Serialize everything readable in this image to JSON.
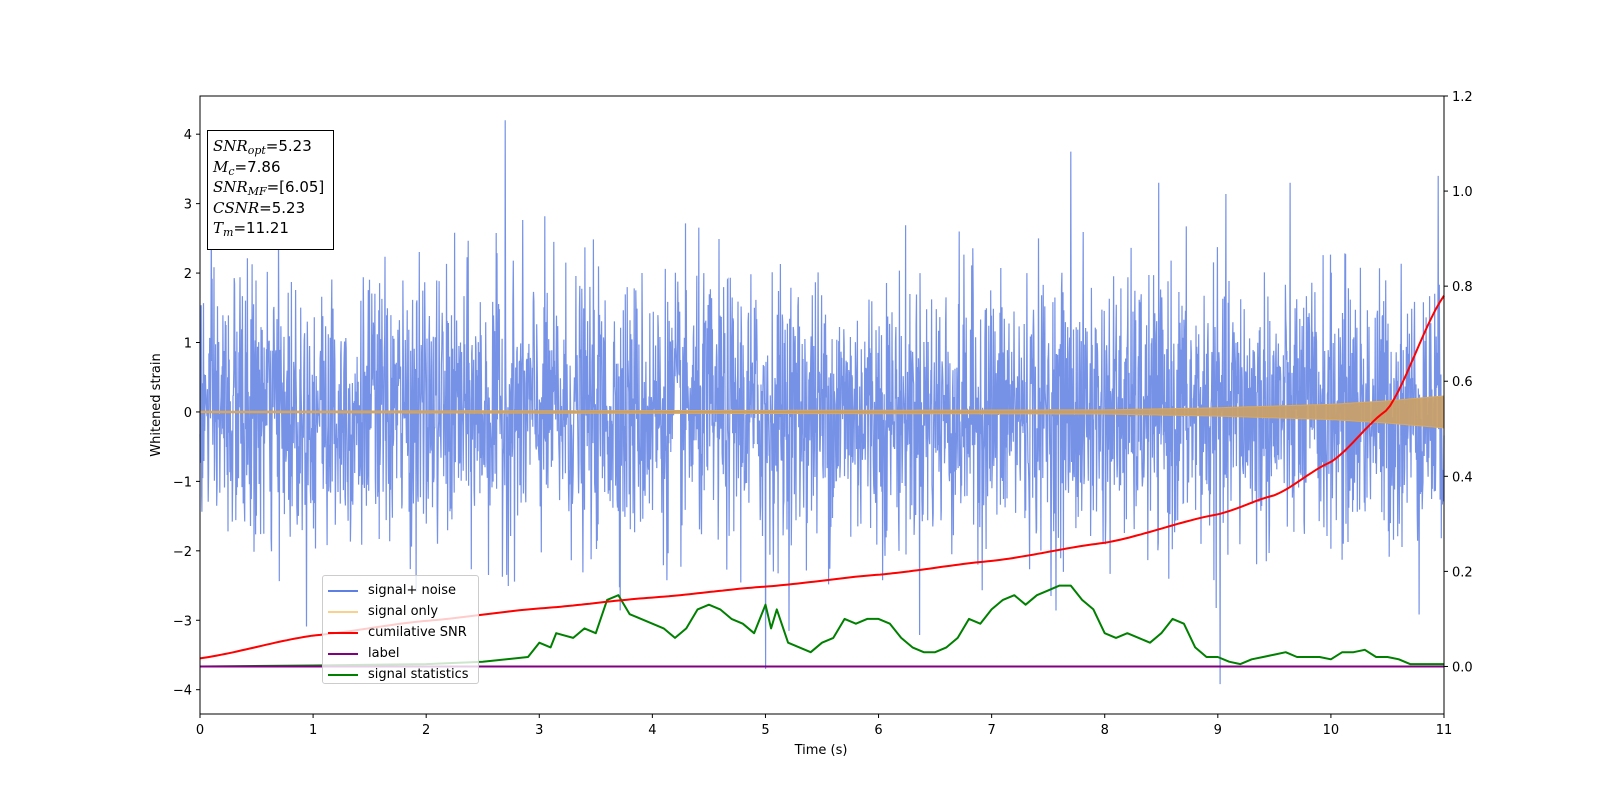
{
  "chart_data": {
    "type": "line",
    "xlabel": "Time (s)",
    "ylabel": "Whitened strain",
    "xlim": [
      0,
      11
    ],
    "ylim": [
      -4.35,
      4.55
    ],
    "y2lim": [
      -0.1,
      1.2
    ],
    "x_ticks": [
      "0",
      "1",
      "2",
      "3",
      "4",
      "5",
      "6",
      "7",
      "8",
      "9",
      "10",
      "11"
    ],
    "y_ticks": [
      "−4",
      "−3",
      "−2",
      "−1",
      "0",
      "1",
      "2",
      "3",
      "4"
    ],
    "y2_ticks": [
      "0.0",
      "0.2",
      "0.4",
      "0.6",
      "0.8",
      "1.0",
      "1.2"
    ],
    "legend_position": "lower-left",
    "annotation": {
      "snr_opt": {
        "label": "SNR",
        "sub": "opt",
        "value": "=5.23"
      },
      "mc": {
        "label": "M",
        "sub": "c",
        "value": "=7.86"
      },
      "snr_mf": {
        "label": "SNR",
        "sub": "MF",
        "value": "=[6.05]"
      },
      "csnr": {
        "label": "CSNR",
        "value": "=5.23"
      },
      "tm": {
        "label": "T",
        "sub": "m",
        "value": "=11.21"
      }
    },
    "series": [
      {
        "name": "signal+ noise",
        "color": "#5e7fe3",
        "axis": "left",
        "kind": "noise",
        "amplitude_envelope": {
          "x": [
            0,
            11
          ],
          "typical_range": [
            -2.2,
            2.3
          ]
        },
        "peak_excursions": {
          "x": [
            2.7,
            7.7,
            10.95,
            9.02,
            5.0
          ],
          "y": [
            4.2,
            3.75,
            3.4,
            -3.92,
            -3.7
          ]
        }
      },
      {
        "name": "signal only",
        "color": "#f5b041",
        "axis": "left",
        "kind": "chirp",
        "envelope": {
          "x": [
            0,
            8,
            9,
            10,
            10.5,
            11
          ],
          "amp": [
            0.01,
            0.03,
            0.06,
            0.11,
            0.16,
            0.23
          ]
        }
      },
      {
        "name": "cumilative SNR",
        "color": "#ff0000",
        "axis": "right",
        "x": [
          0,
          1,
          2,
          3,
          4,
          5,
          6,
          7,
          8,
          9,
          9.5,
          10,
          10.5,
          11
        ],
        "y": [
          0.017,
          0.065,
          0.096,
          0.122,
          0.145,
          0.168,
          0.193,
          0.222,
          0.26,
          0.32,
          0.36,
          0.43,
          0.54,
          0.78
        ]
      },
      {
        "name": "label",
        "color": "#800080",
        "axis": "right",
        "x": [
          0,
          11
        ],
        "y": [
          0.0,
          0.0
        ]
      },
      {
        "name": "signal statistics",
        "color": "#008000",
        "axis": "right",
        "x": [
          0,
          1,
          2,
          2.5,
          2.9,
          3.0,
          3.1,
          3.15,
          3.3,
          3.4,
          3.5,
          3.6,
          3.7,
          3.8,
          3.9,
          4.0,
          4.1,
          4.2,
          4.3,
          4.4,
          4.5,
          4.6,
          4.7,
          4.8,
          4.9,
          5.0,
          5.05,
          5.1,
          5.2,
          5.3,
          5.4,
          5.5,
          5.6,
          5.7,
          5.8,
          5.9,
          6.0,
          6.1,
          6.2,
          6.3,
          6.4,
          6.5,
          6.6,
          6.7,
          6.8,
          6.9,
          7.0,
          7.1,
          7.2,
          7.3,
          7.4,
          7.5,
          7.6,
          7.7,
          7.8,
          7.9,
          8.0,
          8.1,
          8.2,
          8.3,
          8.4,
          8.5,
          8.6,
          8.7,
          8.8,
          8.9,
          9.0,
          9.1,
          9.2,
          9.3,
          9.4,
          9.5,
          9.6,
          9.7,
          9.8,
          9.9,
          10.0,
          10.1,
          10.2,
          10.3,
          10.4,
          10.5,
          10.6,
          10.7,
          10.8,
          10.9,
          11.0
        ],
        "y": [
          0.0,
          0.002,
          0.005,
          0.01,
          0.02,
          0.05,
          0.04,
          0.07,
          0.06,
          0.08,
          0.07,
          0.14,
          0.15,
          0.11,
          0.1,
          0.09,
          0.08,
          0.06,
          0.08,
          0.12,
          0.13,
          0.12,
          0.1,
          0.09,
          0.07,
          0.13,
          0.08,
          0.12,
          0.05,
          0.04,
          0.03,
          0.05,
          0.06,
          0.1,
          0.09,
          0.1,
          0.1,
          0.09,
          0.06,
          0.04,
          0.03,
          0.03,
          0.04,
          0.06,
          0.1,
          0.09,
          0.12,
          0.14,
          0.15,
          0.13,
          0.15,
          0.16,
          0.17,
          0.17,
          0.14,
          0.12,
          0.07,
          0.06,
          0.07,
          0.06,
          0.05,
          0.07,
          0.1,
          0.09,
          0.04,
          0.02,
          0.02,
          0.01,
          0.005,
          0.015,
          0.02,
          0.025,
          0.03,
          0.02,
          0.02,
          0.02,
          0.015,
          0.03,
          0.03,
          0.035,
          0.02,
          0.02,
          0.015,
          0.005,
          0.005,
          0.005,
          0.005
        ]
      }
    ]
  }
}
